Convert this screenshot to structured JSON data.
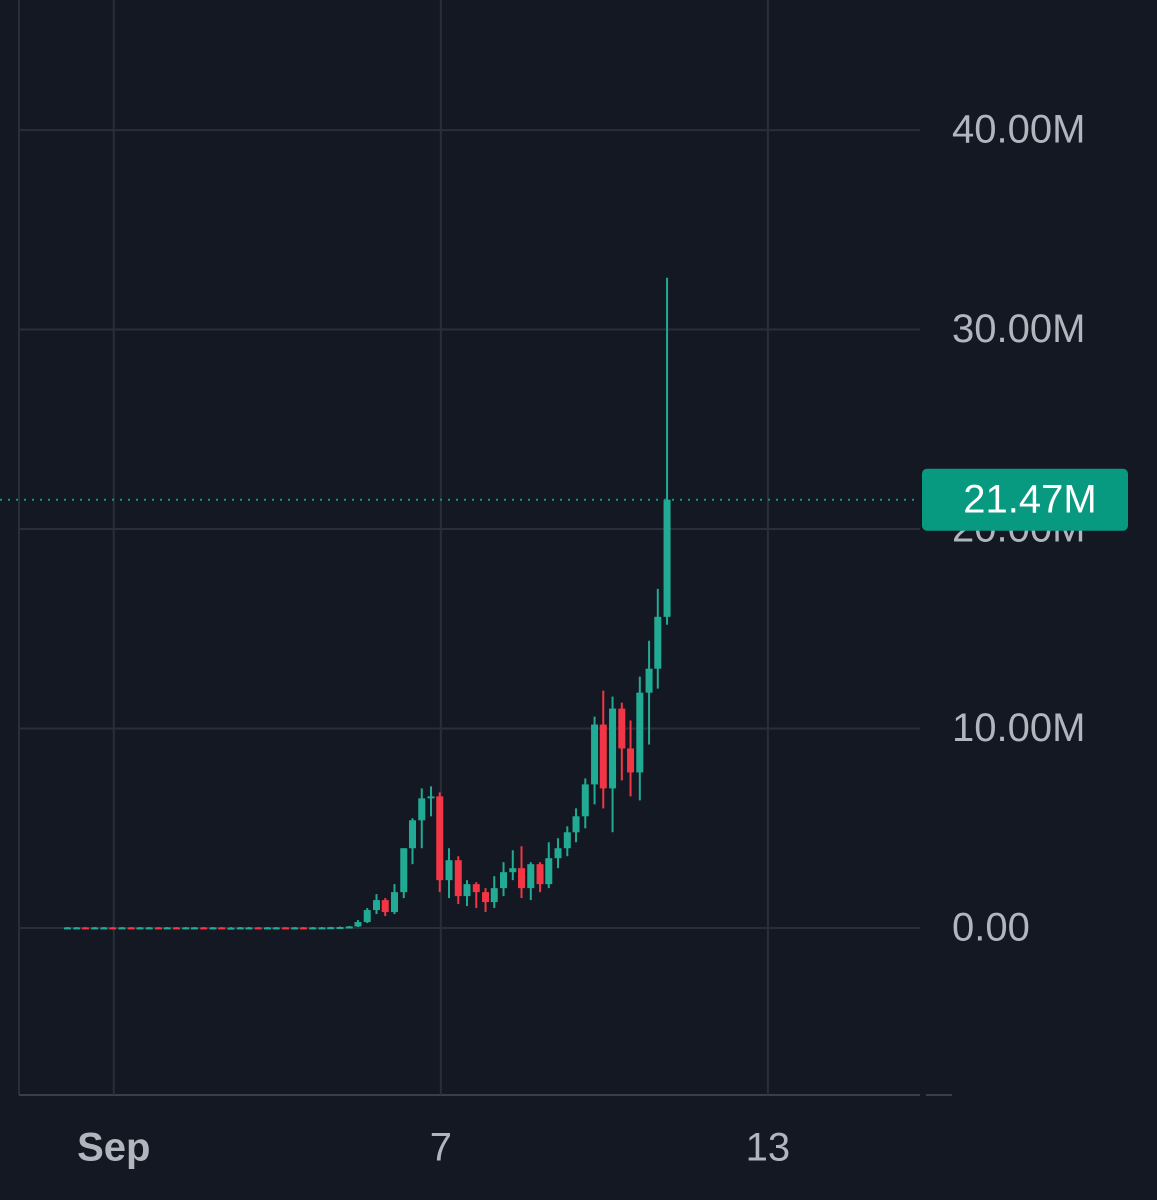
{
  "chart_data": {
    "type": "candlestick",
    "x": [
      0.15,
      0.32,
      0.48,
      0.65,
      0.82,
      0.98,
      1.15,
      1.32,
      1.48,
      1.65,
      1.82,
      1.98,
      2.15,
      2.32,
      2.48,
      2.65,
      2.82,
      2.98,
      3.15,
      3.32,
      3.48,
      3.65,
      3.82,
      3.98,
      4.15,
      4.32,
      4.48,
      4.65,
      4.82,
      4.98,
      5.15,
      5.32,
      5.48,
      5.65,
      5.82,
      5.98,
      6.15,
      6.32,
      6.48,
      6.65,
      6.82,
      6.98,
      7.15,
      7.32,
      7.48,
      7.65,
      7.82,
      7.98,
      8.15,
      8.32,
      8.48,
      8.65,
      8.82,
      8.98,
      9.15,
      9.32,
      9.48,
      9.65,
      9.82,
      9.98,
      10.15,
      10.32,
      10.48,
      10.65,
      10.82,
      10.98,
      11.15
    ],
    "open": [
      0.02,
      0.03,
      0.03,
      0.02,
      0.03,
      0.03,
      0.02,
      0.03,
      0.02,
      0.03,
      0.03,
      0.02,
      0.03,
      0.02,
      0.03,
      0.03,
      0.02,
      0.03,
      0.02,
      0.02,
      0.03,
      0.03,
      0.02,
      0.03,
      0.03,
      0.02,
      0.03,
      0.02,
      0.03,
      0.03,
      0.04,
      0.05,
      0.08,
      0.3,
      0.9,
      1.4,
      0.8,
      1.8,
      4.0,
      5.4,
      6.5,
      6.6,
      2.4,
      3.4,
      1.6,
      2.2,
      1.8,
      1.3,
      2.0,
      2.8,
      3.0,
      2.0,
      3.2,
      2.2,
      3.5,
      4.0,
      4.8,
      5.6,
      7.2,
      10.2,
      7.0,
      11.0,
      9.0,
      7.8,
      11.8,
      13.0,
      15.6
    ],
    "high": [
      0.05,
      0.05,
      0.05,
      0.05,
      0.05,
      0.05,
      0.05,
      0.05,
      0.05,
      0.05,
      0.05,
      0.05,
      0.05,
      0.05,
      0.05,
      0.05,
      0.05,
      0.05,
      0.05,
      0.05,
      0.05,
      0.05,
      0.05,
      0.05,
      0.05,
      0.05,
      0.05,
      0.05,
      0.05,
      0.06,
      0.07,
      0.1,
      0.4,
      1.0,
      1.7,
      1.5,
      2.2,
      4.0,
      5.5,
      7.0,
      7.1,
      6.8,
      4.0,
      3.6,
      2.4,
      2.3,
      2.0,
      2.6,
      3.3,
      3.9,
      4.1,
      3.3,
      3.3,
      4.3,
      4.5,
      5.1,
      6.0,
      7.5,
      10.6,
      11.9,
      11.6,
      11.3,
      10.4,
      12.6,
      14.4,
      17.0,
      32.6
    ],
    "low": [
      0.01,
      0.02,
      0.01,
      0.01,
      0.02,
      0.01,
      0.01,
      0.01,
      0.01,
      0.02,
      0.01,
      0.01,
      0.01,
      0.01,
      0.02,
      0.01,
      0.01,
      0.01,
      0.01,
      0.01,
      0.02,
      0.01,
      0.01,
      0.02,
      0.01,
      0.01,
      0.01,
      0.01,
      0.02,
      0.02,
      0.03,
      0.04,
      0.05,
      0.25,
      0.7,
      0.6,
      0.7,
      1.5,
      3.2,
      4.0,
      5.6,
      1.8,
      1.5,
      1.2,
      1.1,
      1.0,
      0.8,
      1.0,
      1.6,
      2.4,
      1.5,
      1.4,
      1.8,
      2.0,
      3.0,
      3.6,
      4.3,
      5.0,
      6.2,
      6.0,
      4.8,
      7.4,
      6.6,
      6.4,
      9.2,
      12.0,
      15.2
    ],
    "close": [
      0.03,
      0.03,
      0.02,
      0.03,
      0.03,
      0.02,
      0.03,
      0.02,
      0.03,
      0.03,
      0.02,
      0.03,
      0.02,
      0.03,
      0.03,
      0.02,
      0.03,
      0.02,
      0.02,
      0.03,
      0.03,
      0.02,
      0.03,
      0.03,
      0.02,
      0.03,
      0.02,
      0.03,
      0.03,
      0.04,
      0.05,
      0.08,
      0.3,
      0.9,
      1.4,
      0.8,
      1.8,
      4.0,
      5.4,
      6.5,
      6.6,
      2.4,
      3.4,
      1.6,
      2.2,
      1.8,
      1.3,
      2.0,
      2.8,
      3.0,
      2.0,
      3.2,
      2.2,
      3.5,
      4.0,
      4.8,
      5.6,
      7.2,
      10.2,
      7.0,
      11.0,
      9.0,
      7.8,
      11.8,
      13.0,
      15.6,
      21.47
    ],
    "up_color": "#22ab94",
    "down_color": "#f23645",
    "xlim": [
      -0.72,
      15.79
    ],
    "xticks": [
      {
        "value": 1,
        "label": "Sep"
      },
      7,
      13
    ],
    "ylim": [
      -8.37,
      46.52
    ],
    "yticks": [
      {
        "value": 0,
        "label": "0.00"
      },
      {
        "value": 10,
        "label": "10.00M"
      },
      {
        "value": 20,
        "label": "20.00M"
      },
      {
        "value": 30,
        "label": "30.00M"
      },
      {
        "value": 40,
        "label": "40.00M"
      }
    ],
    "last_price": {
      "value": 21.47,
      "label": "21.47M"
    },
    "last_price_color": "#089981",
    "grid": true
  }
}
